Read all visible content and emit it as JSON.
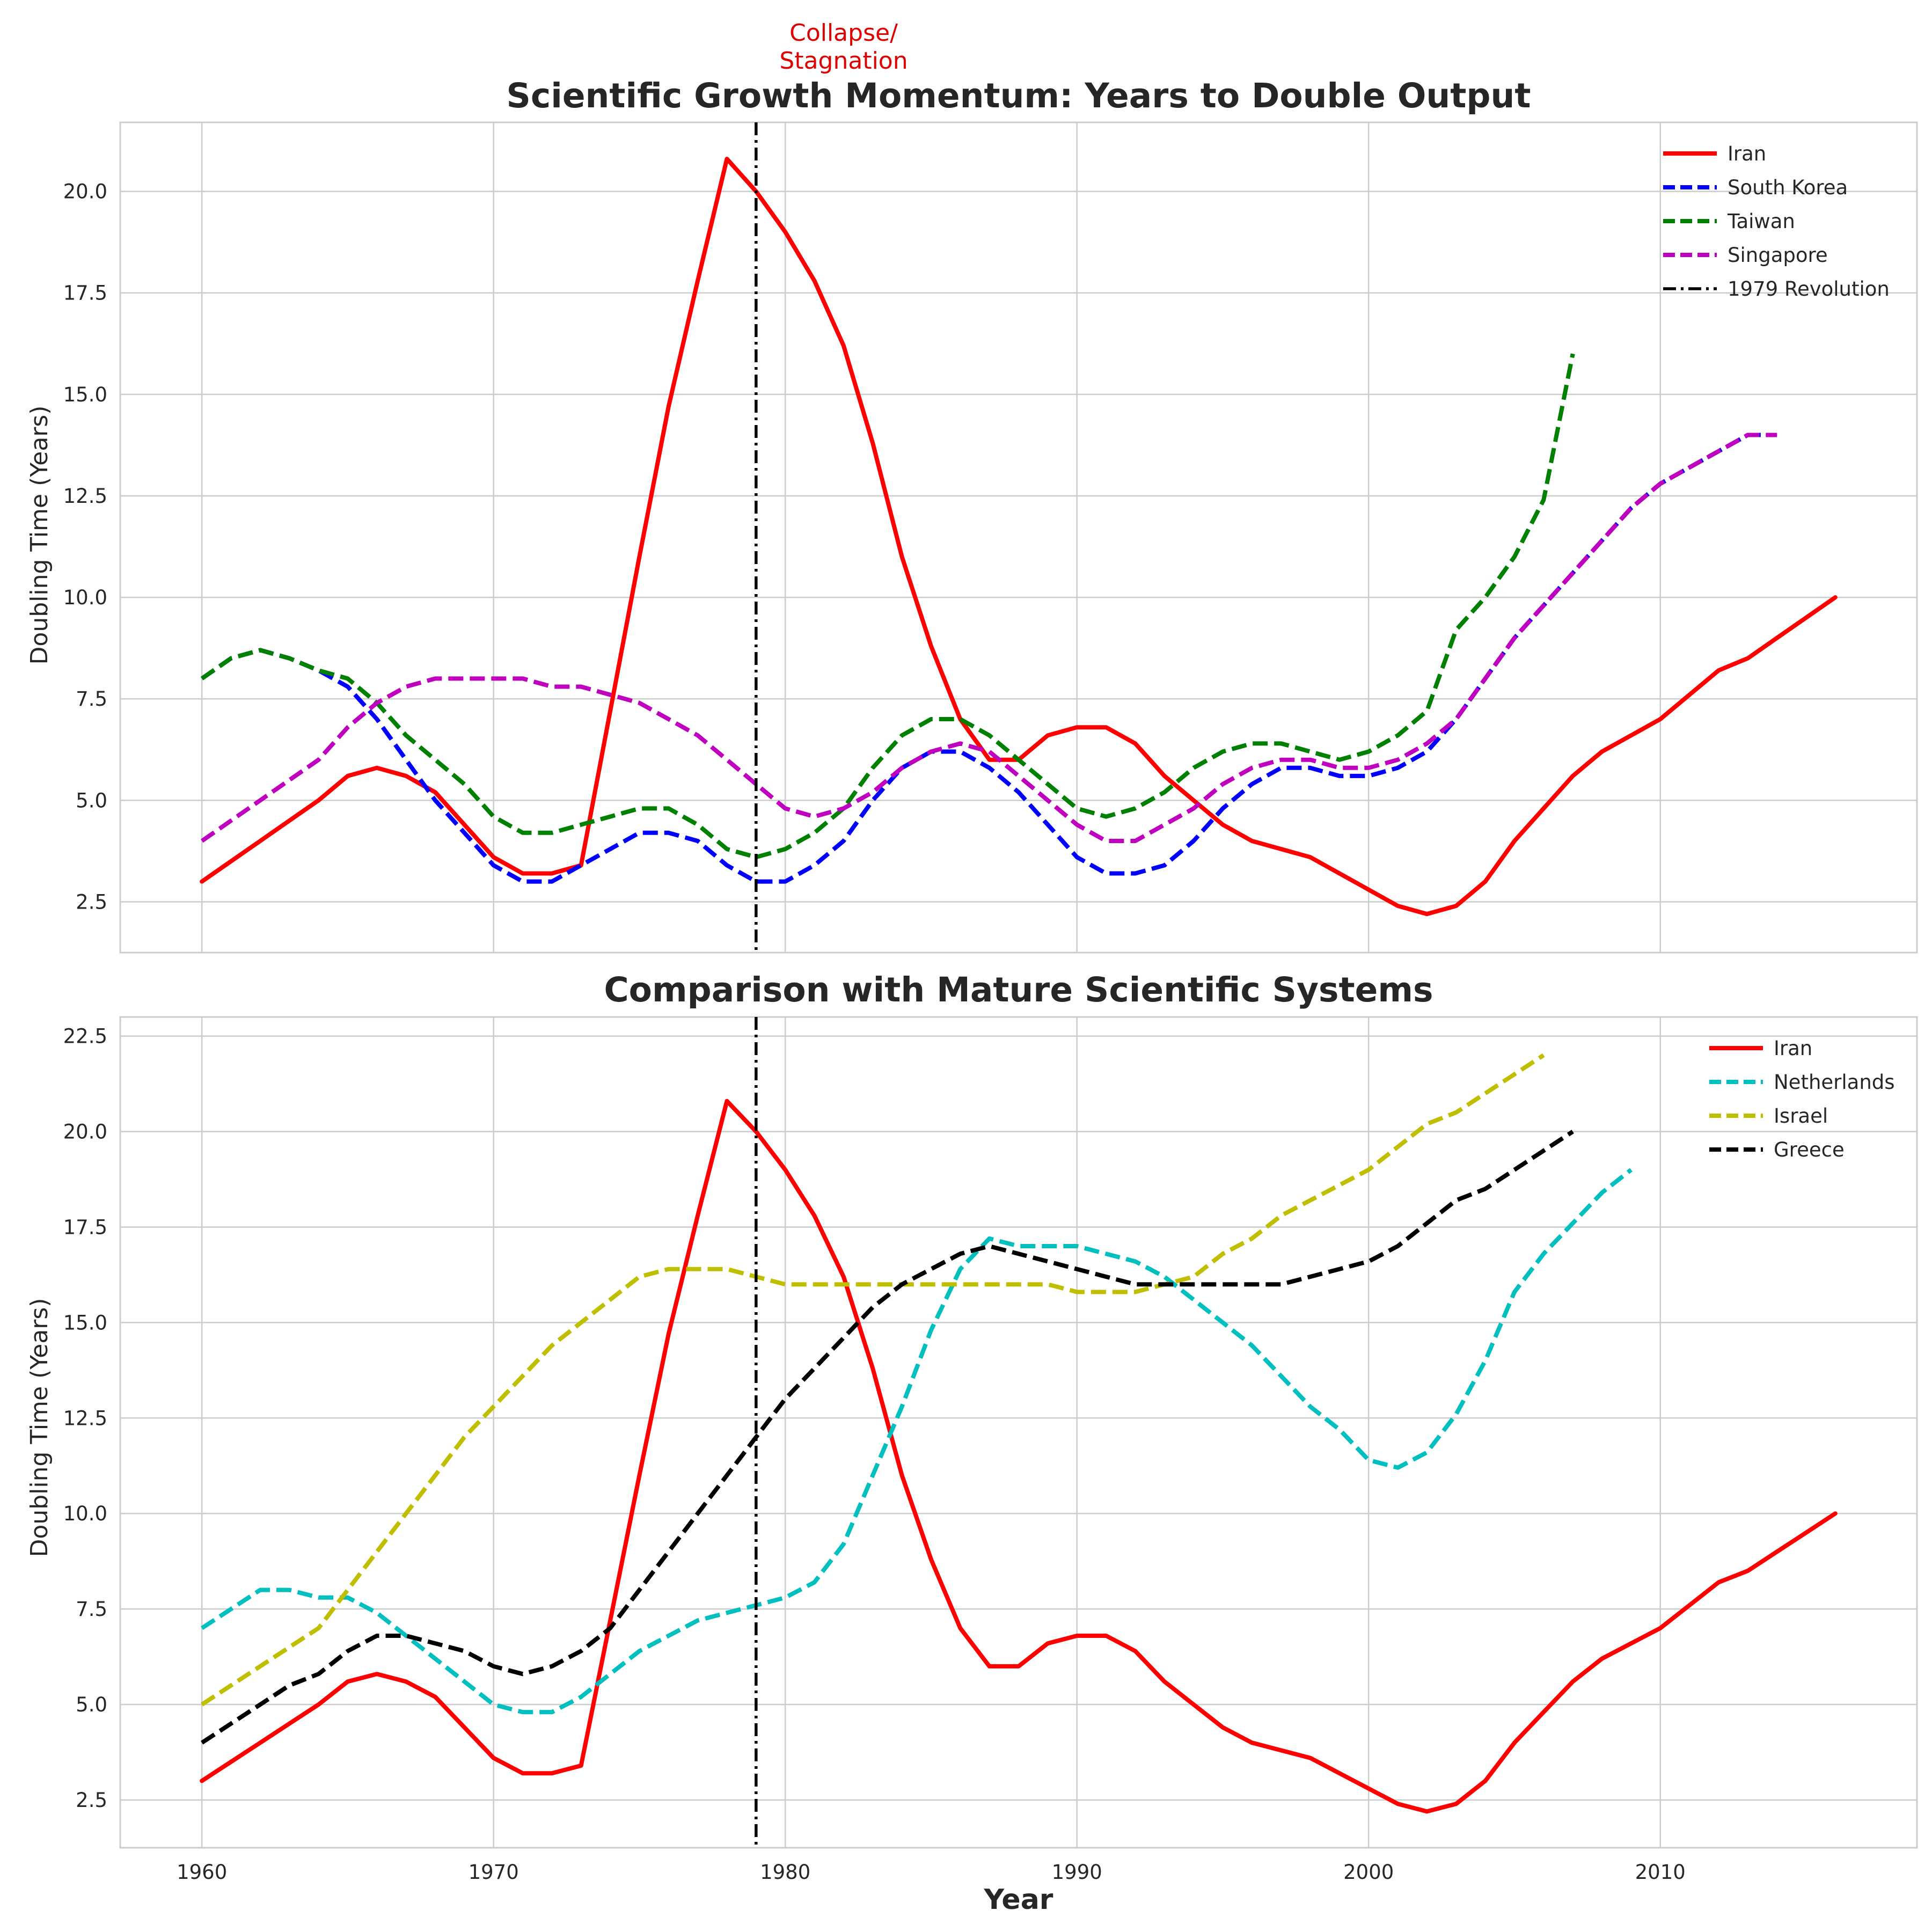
{
  "annotation": "Collapse/\nStagnation",
  "annotation_color": "#e00000",
  "chart_data": [
    {
      "type": "line",
      "title": "Scientific Growth Momentum: Years to Double Output",
      "xlabel": "",
      "ylabel": "Doubling Time (Years)",
      "xlim": [
        1957.2,
        2018.8
      ],
      "ylim": [
        1.25,
        21.7
      ],
      "xticks": [
        1960,
        1970,
        1980,
        1990,
        2000,
        2010
      ],
      "yticks": [
        2.5,
        5.0,
        7.5,
        10.0,
        12.5,
        15.0,
        17.5,
        20.0
      ],
      "ytick_labels": [
        "2.5",
        "5.0",
        "7.5",
        "10.0",
        "12.5",
        "15.0",
        "17.5",
        "20.0"
      ],
      "grid": true,
      "legend_position": "top-right",
      "vline": {
        "x": 1979,
        "label": "1979 Revolution",
        "color": "#000000",
        "style": "dashdot"
      },
      "series": [
        {
          "name": "Iran",
          "color": "#ff0000",
          "style": "solid",
          "ref": "iran"
        },
        {
          "name": "South Korea",
          "color": "#0000ff",
          "style": "dashed",
          "x": [
            1960,
            1961,
            1962,
            1963,
            1964,
            1965,
            1966,
            1967,
            1968,
            1969,
            1970,
            1971,
            1972,
            1973,
            1974,
            1975,
            1976,
            1977,
            1978,
            1979,
            1980,
            1981,
            1982,
            1983,
            1984,
            1985,
            1986,
            1987,
            1988,
            1989,
            1990,
            1991,
            1992,
            1993,
            1994,
            1995,
            1996,
            1997,
            1998,
            1999,
            2000,
            2001,
            2002,
            2003,
            2004,
            2005,
            2006,
            2007,
            2008,
            2009,
            2010,
            2011,
            2012,
            2013,
            2014
          ],
          "values": [
            8.0,
            8.5,
            8.7,
            8.5,
            8.2,
            7.8,
            7.0,
            6.0,
            5.0,
            4.2,
            3.4,
            3.0,
            3.0,
            3.4,
            3.8,
            4.2,
            4.2,
            4.0,
            3.4,
            3.0,
            3.0,
            3.4,
            4.0,
            5.0,
            5.8,
            6.2,
            6.2,
            5.8,
            5.2,
            4.4,
            3.6,
            3.2,
            3.2,
            3.4,
            4.0,
            4.8,
            5.4,
            5.8,
            5.8,
            5.6,
            5.6,
            5.8,
            6.2,
            7.0,
            8.0,
            9.0,
            9.8,
            10.6,
            11.4,
            12.2,
            12.8,
            13.2,
            13.6,
            14.0,
            14.0
          ]
        },
        {
          "name": "Taiwan",
          "color": "#008000",
          "style": "dashed",
          "x": [
            1960,
            1961,
            1962,
            1963,
            1964,
            1965,
            1966,
            1967,
            1968,
            1969,
            1970,
            1971,
            1972,
            1973,
            1974,
            1975,
            1976,
            1977,
            1978,
            1979,
            1980,
            1981,
            1982,
            1983,
            1984,
            1985,
            1986,
            1987,
            1988,
            1989,
            1990,
            1991,
            1992,
            1993,
            1994,
            1995,
            1996,
            1997,
            1998,
            1999,
            2000,
            2001,
            2002,
            2003,
            2004,
            2005,
            2006,
            2007
          ],
          "values": [
            8.0,
            8.5,
            8.7,
            8.5,
            8.2,
            8.0,
            7.4,
            6.6,
            6.0,
            5.4,
            4.6,
            4.2,
            4.2,
            4.4,
            4.6,
            4.8,
            4.8,
            4.4,
            3.8,
            3.6,
            3.8,
            4.2,
            4.8,
            5.8,
            6.6,
            7.0,
            7.0,
            6.6,
            6.0,
            5.4,
            4.8,
            4.6,
            4.8,
            5.2,
            5.8,
            6.2,
            6.4,
            6.4,
            6.2,
            6.0,
            6.2,
            6.6,
            7.2,
            9.2,
            10.0,
            11.0,
            12.4,
            16.0
          ]
        },
        {
          "name": "Singapore",
          "color": "#bf00bf",
          "style": "dashed",
          "x": [
            1960,
            1961,
            1962,
            1963,
            1964,
            1965,
            1966,
            1967,
            1968,
            1969,
            1970,
            1971,
            1972,
            1973,
            1974,
            1975,
            1976,
            1977,
            1978,
            1979,
            1980,
            1981,
            1982,
            1983,
            1984,
            1985,
            1986,
            1987,
            1988,
            1989,
            1990,
            1991,
            1992,
            1993,
            1994,
            1995,
            1996,
            1997,
            1998,
            1999,
            2000,
            2001,
            2002,
            2003,
            2004,
            2005,
            2006,
            2007,
            2008,
            2009,
            2010,
            2011,
            2012,
            2013,
            2014
          ],
          "values": [
            4.0,
            4.5,
            5.0,
            5.5,
            6.0,
            6.8,
            7.4,
            7.8,
            8.0,
            8.0,
            8.0,
            8.0,
            7.8,
            7.8,
            7.6,
            7.4,
            7.0,
            6.6,
            6.0,
            5.4,
            4.8,
            4.6,
            4.8,
            5.2,
            5.8,
            6.2,
            6.4,
            6.2,
            5.6,
            5.0,
            4.4,
            4.0,
            4.0,
            4.4,
            4.8,
            5.4,
            5.8,
            6.0,
            6.0,
            5.8,
            5.8,
            6.0,
            6.4,
            7.0,
            8.0,
            9.0,
            9.8,
            10.6,
            11.4,
            12.2,
            12.8,
            13.2,
            13.6,
            14.0,
            14.0
          ]
        }
      ]
    },
    {
      "type": "line",
      "title": "Comparison with Mature Scientific Systems",
      "xlabel": "Year",
      "ylabel": "Doubling Time (Years)",
      "xlim": [
        1957.2,
        2018.8
      ],
      "ylim": [
        1.25,
        23.0
      ],
      "xticks": [
        1960,
        1970,
        1980,
        1990,
        2000,
        2010
      ],
      "xtick_labels": [
        "1960",
        "1970",
        "1980",
        "1990",
        "2000",
        "2010"
      ],
      "yticks": [
        2.5,
        5.0,
        7.5,
        10.0,
        12.5,
        15.0,
        17.5,
        20.0,
        22.5
      ],
      "ytick_labels": [
        "2.5",
        "5.0",
        "7.5",
        "10.0",
        "12.5",
        "15.0",
        "17.5",
        "20.0",
        "22.5"
      ],
      "grid": true,
      "legend_position": "top-right",
      "vline": {
        "x": 1979,
        "color": "#000000",
        "style": "dashdot"
      },
      "series": [
        {
          "name": "Iran",
          "color": "#ff0000",
          "style": "solid",
          "ref": "iran"
        },
        {
          "name": "Netherlands",
          "color": "#00bfbf",
          "style": "dashed",
          "x": [
            1960,
            1961,
            1962,
            1963,
            1964,
            1965,
            1966,
            1967,
            1968,
            1969,
            1970,
            1971,
            1972,
            1973,
            1974,
            1975,
            1976,
            1977,
            1978,
            1979,
            1980,
            1981,
            1982,
            1983,
            1984,
            1985,
            1986,
            1987,
            1988,
            1989,
            1990,
            1991,
            1992,
            1993,
            1994,
            1995,
            1996,
            1997,
            1998,
            1999,
            2000,
            2001,
            2002,
            2003,
            2004,
            2005,
            2006,
            2007,
            2008,
            2009
          ],
          "values": [
            7.0,
            7.5,
            8.0,
            8.0,
            7.8,
            7.8,
            7.4,
            6.8,
            6.2,
            5.6,
            5.0,
            4.8,
            4.8,
            5.2,
            5.8,
            6.4,
            6.8,
            7.2,
            7.4,
            7.6,
            7.8,
            8.2,
            9.2,
            11.0,
            12.8,
            14.8,
            16.4,
            17.2,
            17.0,
            17.0,
            17.0,
            16.8,
            16.6,
            16.2,
            15.6,
            15.0,
            14.4,
            13.6,
            12.8,
            12.2,
            11.4,
            11.2,
            11.6,
            12.6,
            14.0,
            15.8,
            16.8,
            17.6,
            18.4,
            19.0
          ]
        },
        {
          "name": "Israel",
          "color": "#bfbf00",
          "style": "dashed",
          "x": [
            1960,
            1961,
            1962,
            1963,
            1964,
            1965,
            1966,
            1967,
            1968,
            1969,
            1970,
            1971,
            1972,
            1973,
            1974,
            1975,
            1976,
            1977,
            1978,
            1979,
            1980,
            1981,
            1982,
            1983,
            1984,
            1985,
            1986,
            1987,
            1988,
            1989,
            1990,
            1991,
            1992,
            1993,
            1994,
            1995,
            1996,
            1997,
            1998,
            1999,
            2000,
            2001,
            2002,
            2003,
            2004,
            2005,
            2006
          ],
          "values": [
            5.0,
            5.5,
            6.0,
            6.5,
            7.0,
            8.0,
            9.0,
            10.0,
            11.0,
            12.0,
            12.8,
            13.6,
            14.4,
            15.0,
            15.6,
            16.2,
            16.4,
            16.4,
            16.4,
            16.2,
            16.0,
            16.0,
            16.0,
            16.0,
            16.0,
            16.0,
            16.0,
            16.0,
            16.0,
            16.0,
            15.8,
            15.8,
            15.8,
            16.0,
            16.2,
            16.8,
            17.2,
            17.8,
            18.2,
            18.6,
            19.0,
            19.6,
            20.2,
            20.5,
            21.0,
            21.5,
            22.0
          ]
        },
        {
          "name": "Greece",
          "color": "#000000",
          "style": "dashed",
          "x": [
            1960,
            1961,
            1962,
            1963,
            1964,
            1965,
            1966,
            1967,
            1968,
            1969,
            1970,
            1971,
            1972,
            1973,
            1974,
            1975,
            1976,
            1977,
            1978,
            1979,
            1980,
            1981,
            1982,
            1983,
            1984,
            1985,
            1986,
            1987,
            1988,
            1989,
            1990,
            1991,
            1992,
            1993,
            1994,
            1995,
            1996,
            1997,
            1998,
            1999,
            2000,
            2001,
            2002,
            2003,
            2004,
            2005,
            2006,
            2007
          ],
          "values": [
            4.0,
            4.5,
            5.0,
            5.5,
            5.8,
            6.4,
            6.8,
            6.8,
            6.6,
            6.4,
            6.0,
            5.8,
            6.0,
            6.4,
            7.0,
            8.0,
            9.0,
            10.0,
            11.0,
            12.0,
            13.0,
            13.8,
            14.6,
            15.4,
            16.0,
            16.4,
            16.8,
            17.0,
            16.8,
            16.6,
            16.4,
            16.2,
            16.0,
            16.0,
            16.0,
            16.0,
            16.0,
            16.0,
            16.2,
            16.4,
            16.6,
            17.0,
            17.6,
            18.2,
            18.5,
            19.0,
            19.5,
            20.0
          ]
        }
      ]
    }
  ],
  "iran": {
    "x": [
      1960,
      1961,
      1962,
      1963,
      1964,
      1965,
      1966,
      1967,
      1968,
      1969,
      1970,
      1971,
      1972,
      1973,
      1974,
      1975,
      1976,
      1977,
      1978,
      1979,
      1980,
      1981,
      1982,
      1983,
      1984,
      1985,
      1986,
      1987,
      1988,
      1989,
      1990,
      1991,
      1992,
      1993,
      1994,
      1995,
      1996,
      1997,
      1998,
      1999,
      2000,
      2001,
      2002,
      2003,
      2004,
      2005,
      2006,
      2007,
      2008,
      2009,
      2010,
      2011,
      2012,
      2013,
      2014,
      2015,
      2016
    ],
    "values": [
      3.0,
      3.5,
      4.0,
      4.5,
      5.0,
      5.6,
      5.8,
      5.6,
      5.2,
      4.4,
      3.6,
      3.2,
      3.2,
      3.4,
      7.2,
      11.0,
      14.7,
      17.8,
      20.8,
      20.0,
      19.0,
      17.8,
      16.2,
      13.8,
      11.0,
      8.8,
      7.0,
      6.0,
      6.0,
      6.6,
      6.8,
      6.8,
      6.4,
      5.6,
      5.0,
      4.4,
      4.0,
      3.8,
      3.6,
      3.2,
      2.8,
      2.4,
      2.2,
      2.4,
      3.0,
      4.0,
      4.8,
      5.6,
      6.2,
      6.6,
      7.0,
      7.6,
      8.2,
      8.5,
      9.0,
      9.5,
      10.0
    ]
  }
}
